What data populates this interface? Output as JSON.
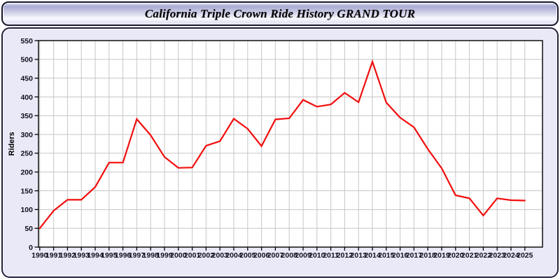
{
  "window": {
    "title": "California Triple Crown Ride History GRAND TOUR"
  },
  "colors": {
    "line": "#f20d0d",
    "panel_fill": "#e9e9f8",
    "plot_bg": "#ffffff",
    "grid": "#c6c6c6",
    "frame": "#000000",
    "tick_text": "#10101c",
    "titlebar_border": "#14142a"
  },
  "chart_data": {
    "type": "line",
    "title": "California Triple Crown Ride History GRAND TOUR",
    "xlabel": "",
    "ylabel": "Riders",
    "ylim": [
      0,
      550
    ],
    "ytick_step": 50,
    "ytick_labels": [
      "0",
      "50",
      "100",
      "150",
      "200",
      "250",
      "300",
      "350",
      "400",
      "450",
      "500",
      "550"
    ],
    "grid": true,
    "legend_position": "none",
    "x": [
      1990,
      1991,
      1992,
      1993,
      1994,
      1995,
      1996,
      1997,
      1998,
      1999,
      2000,
      2001,
      2002,
      2003,
      2004,
      2005,
      2006,
      2007,
      2008,
      2009,
      2010,
      2011,
      2012,
      2013,
      2014,
      2015,
      2016,
      2017,
      2018,
      2019,
      2020,
      2021,
      2022,
      2023,
      2024,
      2025
    ],
    "series": [
      {
        "name": "Riders",
        "color": "#f20d0d",
        "values": [
          50,
          97,
          126,
          126,
          160,
          225,
          225,
          341,
          298,
          240,
          211,
          212,
          270,
          282,
          342,
          315,
          269,
          340,
          343,
          392,
          374,
          380,
          411,
          386,
          494,
          385,
          345,
          319,
          261,
          210,
          138,
          130,
          84,
          130,
          125,
          124
        ]
      }
    ]
  }
}
